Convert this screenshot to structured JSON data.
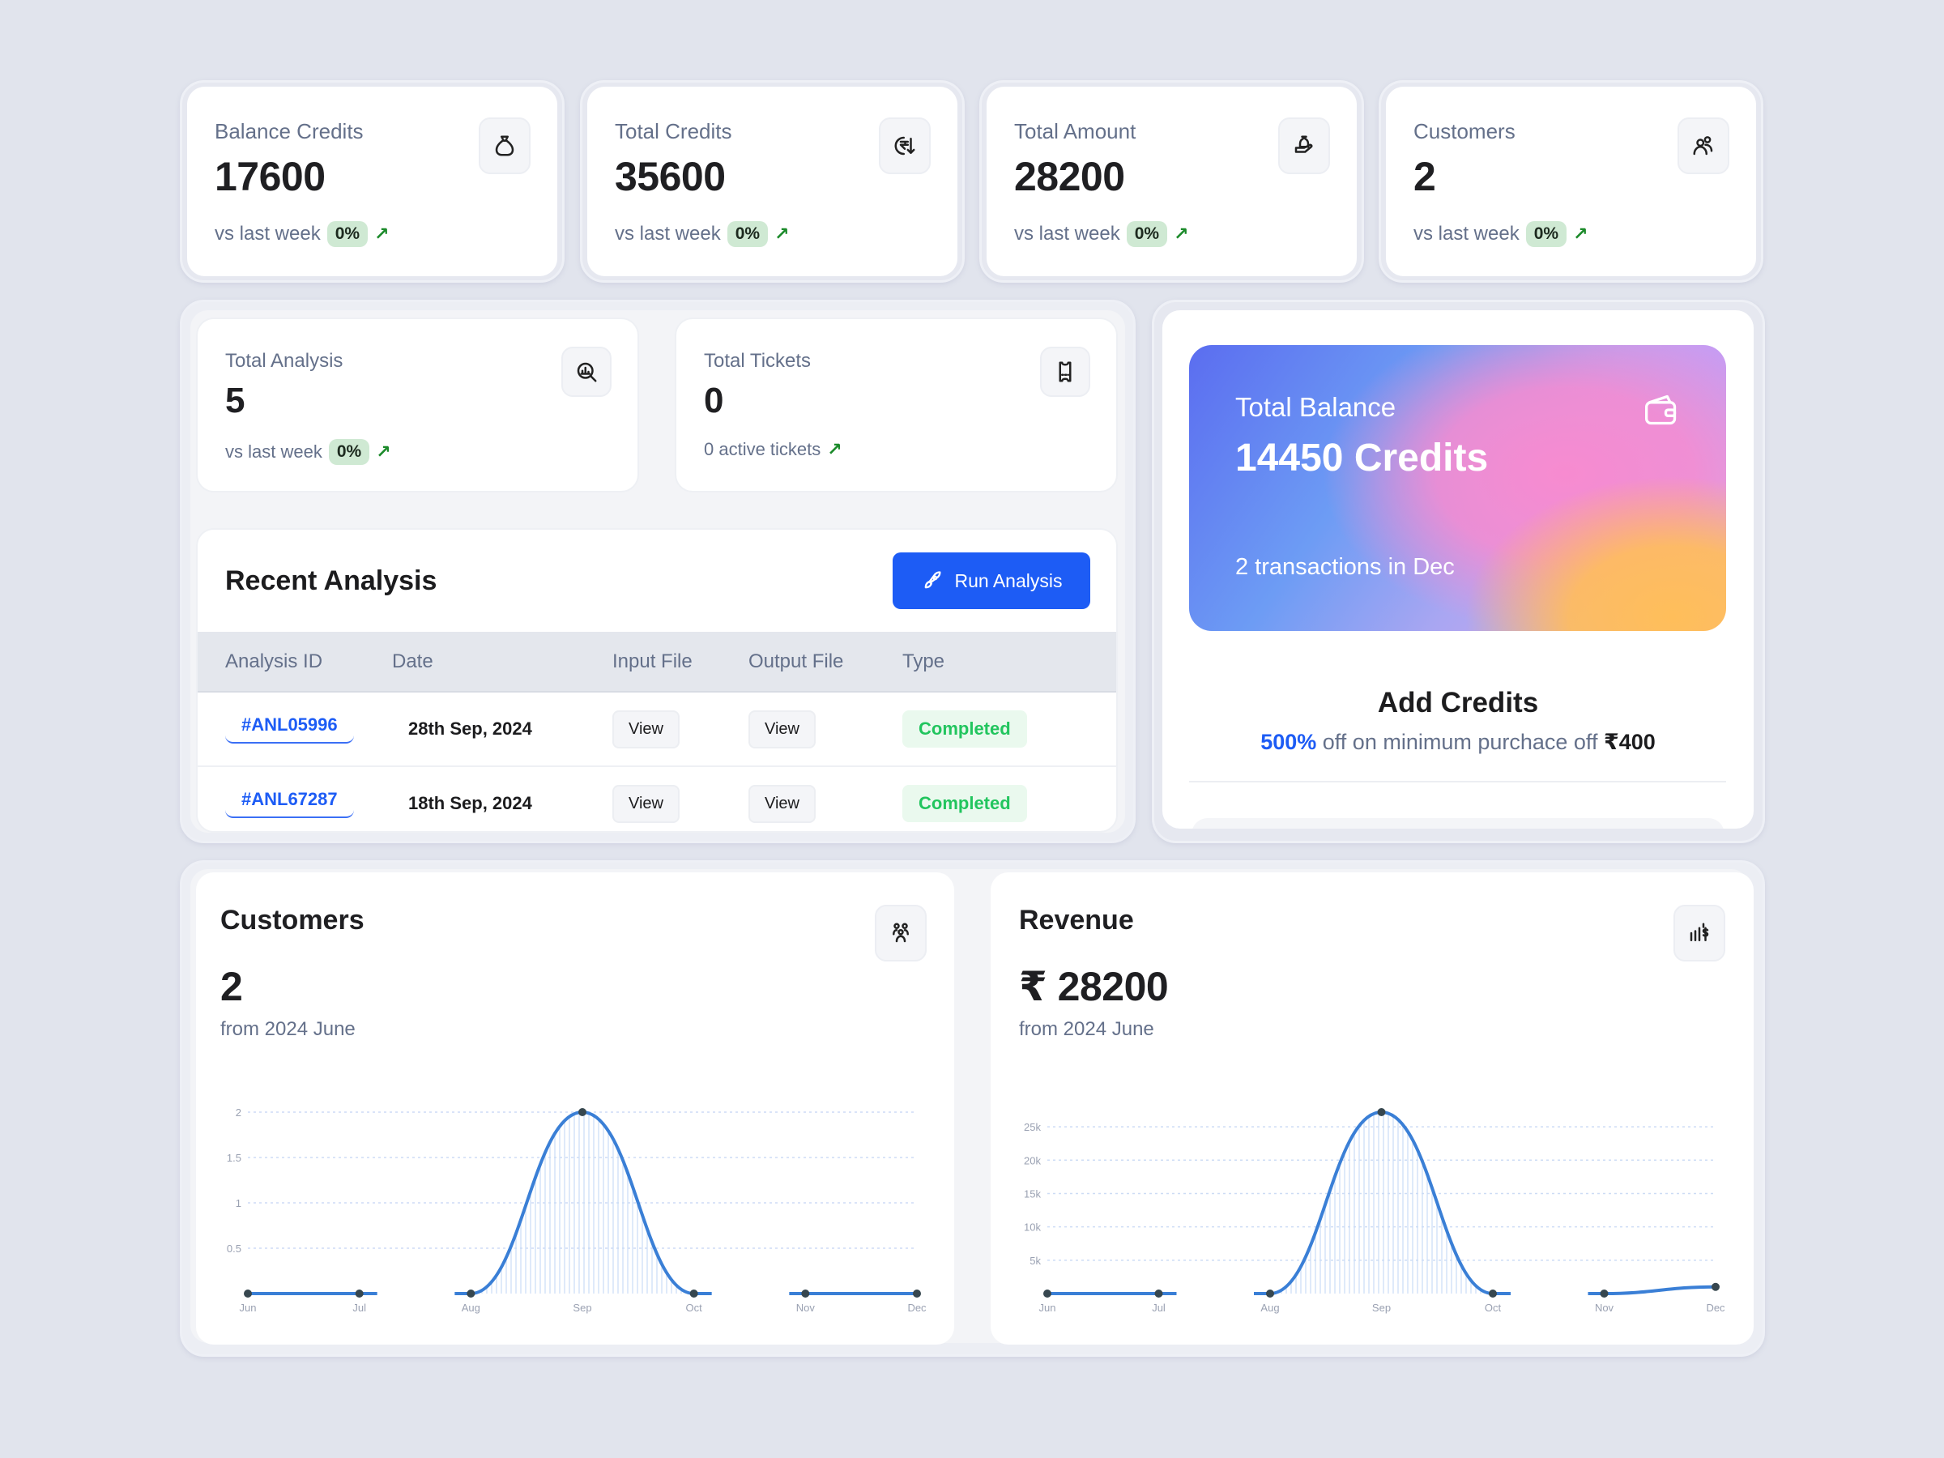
{
  "stats_top": [
    {
      "label": "Balance Credits",
      "value": "17600",
      "trend_text": "vs last week",
      "trend_pct": "0%",
      "icon": "money-bag-icon"
    },
    {
      "label": "Total Credits",
      "value": "35600",
      "trend_text": "vs last week",
      "trend_pct": "0%",
      "icon": "rupee-down-icon"
    },
    {
      "label": "Total Amount",
      "value": "28200",
      "trend_text": "vs last week",
      "trend_pct": "0%",
      "icon": "hand-money-icon"
    },
    {
      "label": "Customers",
      "value": "2",
      "trend_text": "vs last week",
      "trend_pct": "0%",
      "icon": "users-icon"
    }
  ],
  "stats_mid": [
    {
      "label": "Total Analysis",
      "value": "5",
      "trend_text": "vs last week",
      "trend_pct": "0%",
      "icon": "search-chart-icon"
    },
    {
      "label": "Total Tickets",
      "value": "0",
      "trend_text": "0 active tickets",
      "icon": "ticket-icon"
    }
  ],
  "trend_arrow": "↗",
  "recent_analysis": {
    "title": "Recent Analysis",
    "run_button": "Run Analysis",
    "columns": [
      "Analysis ID",
      "Date",
      "Input File",
      "Output File",
      "Type"
    ],
    "rows": [
      {
        "id": "#ANL05996",
        "date": "28th Sep, 2024",
        "input": "View",
        "output": "View",
        "type": "Completed"
      },
      {
        "id": "#ANL67287",
        "date": "18th Sep, 2024",
        "input": "View",
        "output": "View",
        "type": "Completed"
      }
    ]
  },
  "balance_card": {
    "label": "Total Balance",
    "value": "14450 Credits",
    "subtext": "2 transactions in Dec"
  },
  "add_credits": {
    "title": "Add Credits",
    "highlight": "500%",
    "text": " off on minimum purchace off ",
    "amount": "₹400"
  },
  "customers_chart": {
    "title": "Customers",
    "value": "2",
    "subtitle": "from 2024 June"
  },
  "revenue_chart": {
    "title": "Revenue",
    "value": "₹ 28200",
    "subtitle": "from 2024 June"
  },
  "colors": {
    "accent": "#1d5cf5",
    "line": "#3a7fd6",
    "success": "#22c55e",
    "trend": "#1b8a2a"
  },
  "chart_data": [
    {
      "type": "line",
      "title": "Customers",
      "categories": [
        "Jun",
        "Jul",
        "Aug",
        "Sep",
        "Oct",
        "Nov",
        "Dec"
      ],
      "values": [
        0,
        0,
        0,
        2,
        0,
        0,
        0
      ],
      "yticks": [
        "0.5",
        "1",
        "1.5",
        "2"
      ],
      "ylim": [
        0,
        2
      ],
      "grid": true
    },
    {
      "type": "line",
      "title": "Revenue",
      "categories": [
        "Jun",
        "Jul",
        "Aug",
        "Sep",
        "Oct",
        "Nov",
        "Dec"
      ],
      "values": [
        0,
        0,
        0,
        27200,
        0,
        0,
        1000
      ],
      "yticks": [
        "5k",
        "10k",
        "15k",
        "20k",
        "25k"
      ],
      "ylim": [
        0,
        27200
      ],
      "grid": true
    }
  ]
}
